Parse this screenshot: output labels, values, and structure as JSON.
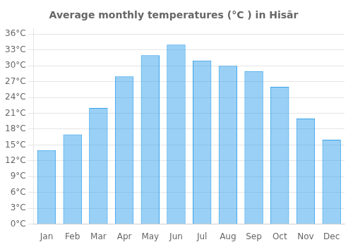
{
  "chart_data": {
    "type": "bar",
    "title": "Average monthly temperatures (°C ) in Hisār",
    "categories": [
      "Jan",
      "Feb",
      "Mar",
      "Apr",
      "May",
      "Jun",
      "Jul",
      "Aug",
      "Sep",
      "Oct",
      "Nov",
      "Dec"
    ],
    "values": [
      14,
      17,
      22,
      28,
      32,
      34,
      31,
      30,
      29,
      26,
      20,
      16
    ],
    "ylim": [
      0,
      37
    ],
    "yticks": [
      {
        "value": 0,
        "label": "0°C"
      },
      {
        "value": 3,
        "label": "3°C"
      },
      {
        "value": 6,
        "label": "6°C"
      },
      {
        "value": 9,
        "label": "9°C"
      },
      {
        "value": 12,
        "label": "12°C"
      },
      {
        "value": 15,
        "label": "15°C"
      },
      {
        "value": 18,
        "label": "18°C"
      },
      {
        "value": 21,
        "label": "21°C"
      },
      {
        "value": 24,
        "label": "24°C"
      },
      {
        "value": 27,
        "label": "27°C"
      },
      {
        "value": 30,
        "label": "30°C"
      },
      {
        "value": 33,
        "label": "33°C"
      },
      {
        "value": 36,
        "label": "36°C"
      }
    ],
    "grid": true
  }
}
